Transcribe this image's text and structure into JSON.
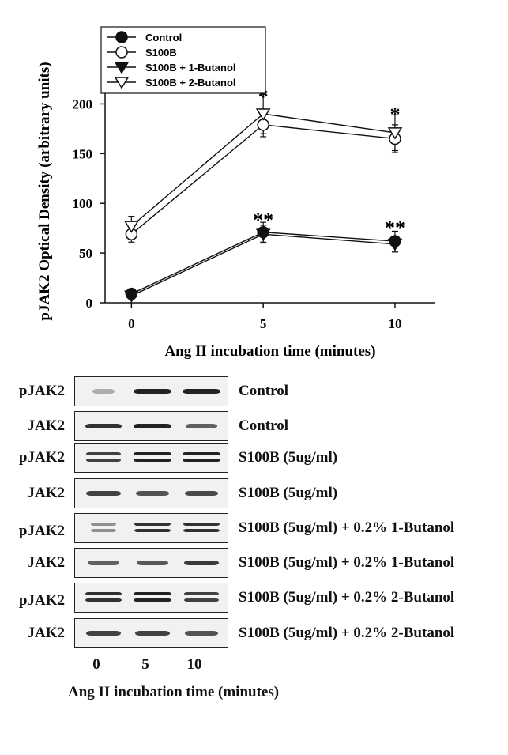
{
  "chart_data": {
    "type": "line",
    "ylabel": "pJAK2 Optical Density (arbitrary units)",
    "xlabel": "Ang II incubation time (minutes)",
    "xlim": [
      -1,
      11.5
    ],
    "ylim": [
      0,
      225
    ],
    "x_ticks": [
      0,
      5,
      10
    ],
    "y_ticks": [
      0,
      50,
      100,
      150,
      200
    ],
    "grid": false,
    "legend_position": "top-left",
    "series": [
      {
        "name": "Control",
        "marker": "filled-circle",
        "x": [
          0,
          5,
          10
        ],
        "y": [
          9,
          71,
          62
        ],
        "err": [
          4,
          10,
          10
        ]
      },
      {
        "name": "S100B",
        "marker": "open-circle",
        "x": [
          0,
          5,
          10
        ],
        "y": [
          69,
          179,
          165
        ],
        "err": [
          8,
          12,
          14
        ]
      },
      {
        "name": "S100B + 1-Butanol",
        "marker": "filled-triangle-down",
        "x": [
          0,
          5,
          10
        ],
        "y": [
          7,
          69,
          59
        ],
        "err": [
          4,
          9,
          8
        ]
      },
      {
        "name": "S100B + 2-Butanol",
        "marker": "open-triangle-down",
        "x": [
          0,
          5,
          10
        ],
        "y": [
          77,
          190,
          171
        ],
        "err": [
          10,
          20,
          18
        ]
      }
    ],
    "annotations": [
      {
        "text": "*",
        "x": 5,
        "y": 210
      },
      {
        "text": "*",
        "x": 10,
        "y": 192
      },
      {
        "text": "**",
        "x": 5,
        "y": 86
      },
      {
        "text": "**",
        "x": 10,
        "y": 78
      }
    ]
  },
  "blot": {
    "rows": [
      {
        "label": "pJAK2",
        "condition": "Control",
        "bands": [
          0.1,
          1.0,
          1.0
        ],
        "double": false
      },
      {
        "label": "JAK2",
        "condition": "Control",
        "bands": [
          0.9,
          1.0,
          0.6
        ],
        "double": false
      },
      {
        "label": "pJAK2",
        "condition": "S100B (5ug/ml)",
        "bands": [
          0.8,
          1.0,
          1.0
        ],
        "double": true
      },
      {
        "label": "JAK2",
        "condition": "S100B (5ug/ml)",
        "bands": [
          0.8,
          0.7,
          0.75
        ],
        "double": false
      },
      {
        "label": "pJAK2",
        "condition": "S100B (5ug/ml) + 0.2% 1-Butanol",
        "bands": [
          0.3,
          0.9,
          0.9
        ],
        "double": true
      },
      {
        "label": "JAK2",
        "condition": "S100B (5ug/ml) + 0.2% 1-Butanol",
        "bands": [
          0.6,
          0.65,
          0.85
        ],
        "double": false
      },
      {
        "label": "pJAK2",
        "condition": "S100B (5ug/ml) + 0.2% 2-Butanol",
        "bands": [
          0.9,
          1.0,
          0.8
        ],
        "double": true
      },
      {
        "label": "JAK2",
        "condition": "S100B (5ug/ml) + 0.2% 2-Butanol",
        "bands": [
          0.8,
          0.8,
          0.7
        ],
        "double": false
      }
    ],
    "lane_labels": [
      "0",
      "5",
      "10"
    ],
    "xlabel": "Ang II incubation time (minutes)"
  }
}
